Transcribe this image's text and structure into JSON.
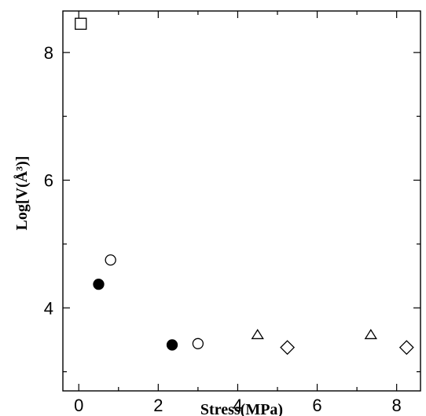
{
  "chart_data": {
    "type": "scatter",
    "title": "",
    "xlabel": "Stress(MPa)",
    "ylabel": "Log[V(Å³)]",
    "xlim": [
      -0.4,
      8.6
    ],
    "ylim": [
      2.7,
      8.65
    ],
    "xticks": [
      0,
      2,
      4,
      6,
      8
    ],
    "yticks": [
      4,
      6,
      8
    ],
    "grid": false,
    "legend": "none",
    "series": [
      {
        "marker": "square",
        "filled": false,
        "points": [
          [
            0.05,
            8.45
          ]
        ]
      },
      {
        "marker": "circle",
        "filled": true,
        "points": [
          [
            0.5,
            4.37
          ],
          [
            2.35,
            3.42
          ]
        ]
      },
      {
        "marker": "circle",
        "filled": false,
        "points": [
          [
            0.8,
            4.75
          ],
          [
            3.0,
            3.44
          ]
        ]
      },
      {
        "marker": "triangle",
        "filled": false,
        "points": [
          [
            4.5,
            3.57
          ],
          [
            7.35,
            3.57
          ]
        ]
      },
      {
        "marker": "diamond",
        "filled": false,
        "points": [
          [
            5.25,
            3.38
          ],
          [
            8.25,
            3.38
          ]
        ]
      }
    ]
  }
}
